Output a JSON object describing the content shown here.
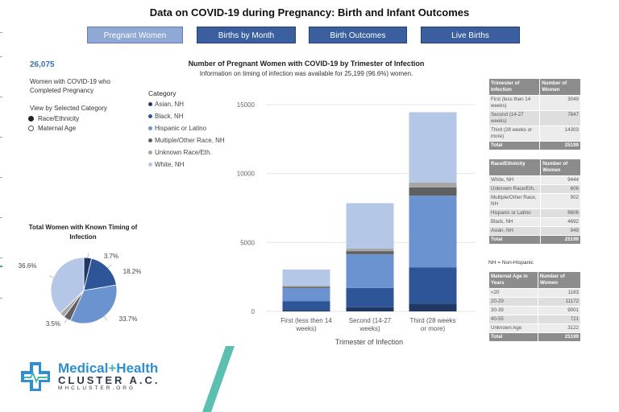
{
  "title": "Data on COVID-19 during Pregnancy: Birth and Infant Outcomes",
  "tabs": [
    {
      "label": "Pregnant Women",
      "active": true
    },
    {
      "label": "Births by Month",
      "active": false
    },
    {
      "label": "Birth Outcomes",
      "active": false
    },
    {
      "label": "Live Births",
      "active": false
    }
  ],
  "stat": {
    "value": "26,075",
    "label": "Women with COVID-19 who Completed Pregnancy"
  },
  "view": {
    "heading": "View by Selected Category",
    "options": [
      {
        "label": "Race/Ethnicity",
        "selected": true
      },
      {
        "label": "Maternal Age",
        "selected": false
      }
    ]
  },
  "chart": {
    "title": "Number of Pregnant Women with COVID-19 by Trimester of Infection",
    "subtitle": "Information on timing of infection was available for 25,199 (96.6%) women.",
    "legend_title": "Category"
  },
  "chart_data": {
    "type": "bar",
    "stacked": true,
    "categories": [
      "First (less then 14 weeks)",
      "Second (14-27 weeks)",
      "Third (28 weeks or more)"
    ],
    "xlabel": "Trimester of Infection",
    "ylabel": "",
    "ylim": [
      0,
      15000
    ],
    "yticks": [
      0,
      5000,
      10000,
      15000
    ],
    "series": [
      {
        "name": "Asian, NH",
        "color": "#1f3864",
        "values": [
          100,
          300,
          550
        ]
      },
      {
        "name": "Black, NH",
        "color": "#2e5597",
        "values": [
          650,
          1400,
          2650
        ]
      },
      {
        "name": "Hispanic or Latino",
        "color": "#6a93d0",
        "values": [
          950,
          2450,
          5200
        ]
      },
      {
        "name": "Multiple/Other Race, NH",
        "color": "#606060",
        "values": [
          80,
          220,
          600
        ]
      },
      {
        "name": "Unknown Race/Eth.",
        "color": "#a6a6a6",
        "values": [
          60,
          180,
          350
        ]
      },
      {
        "name": "White, NH",
        "color": "#b4c7e7",
        "values": [
          1200,
          3300,
          5100
        ]
      }
    ]
  },
  "pie": {
    "title": "Total Women with Known Timing of Infection",
    "slices": [
      {
        "name": "Asian, NH",
        "value": 3.7,
        "label": "3.7%",
        "color": "#1f3864"
      },
      {
        "name": "Black, NH",
        "value": 18.2,
        "label": "18.2%",
        "color": "#2e5597"
      },
      {
        "name": "Hispanic or Latino",
        "value": 33.7,
        "label": "33.7%",
        "color": "#6a93d0"
      },
      {
        "name": "Multiple/Other Race, NH",
        "value": 3.5,
        "label": "3.5%",
        "color": "#606060"
      },
      {
        "name": "Unknown Race/Eth.",
        "value": 2.4,
        "label": "",
        "color": "#a6a6a6"
      },
      {
        "name": "White, NH",
        "value": 36.6,
        "label": "36.6%",
        "color": "#b4c7e7"
      }
    ]
  },
  "tables": {
    "trimester": {
      "headers": [
        "Trimester of Infection",
        "Number of Women"
      ],
      "rows": [
        [
          "First (less then 14 weeks)",
          "3049"
        ],
        [
          "Second (14-27 weeks)",
          "7847"
        ],
        [
          "Third (28 weeks or more)",
          "14303"
        ]
      ],
      "total": [
        "Total",
        "25199"
      ]
    },
    "race": {
      "headers": [
        "Race/Ethnicity",
        "Number of Women"
      ],
      "rows": [
        [
          "White, NH",
          "9444"
        ],
        [
          "Unknown Race/Eth.",
          "606"
        ],
        [
          "Multiple/Other Race, NH",
          "902"
        ],
        [
          "Hispanic or Latino",
          "8606"
        ],
        [
          "Black, NH",
          "4692"
        ],
        [
          "Asian, NH",
          "949"
        ]
      ],
      "total": [
        "Total",
        "25199"
      ]
    },
    "age": {
      "headers": [
        "Maternal Age in Years",
        "Number of Women"
      ],
      "rows": [
        [
          "<20",
          "1183"
        ],
        [
          "20-29",
          "11172"
        ],
        [
          "30-39",
          "9001"
        ],
        [
          "40-55",
          "721"
        ],
        [
          "Unknown Age",
          "3122"
        ]
      ],
      "total": [
        "Total",
        "25199"
      ]
    }
  },
  "note": "NH = Non-Hispanic",
  "logo": {
    "line1_a": "Medical",
    "line1_b": "+",
    "line1_c": "Health",
    "line2": "CLUSTER A.C.",
    "line3": "MHCLUSTER.ORG",
    "colors": {
      "blue": "#2f8fd1",
      "teal": "#4cb8a8",
      "dark": "#2f3a4b"
    }
  }
}
